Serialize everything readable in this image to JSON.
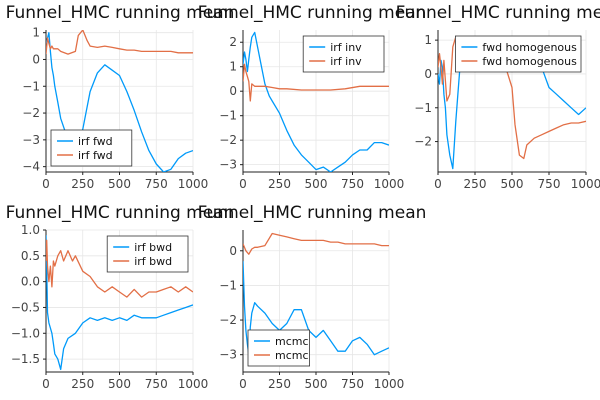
{
  "colors": {
    "series1": "#009AFA",
    "series2": "#E26F46"
  },
  "chart_data": [
    {
      "type": "line",
      "title": "Funnel_HMC running mean",
      "xlim": [
        0,
        1000
      ],
      "ylim": [
        -4.2,
        1.1
      ],
      "xticks": [
        0,
        250,
        500,
        750,
        1000
      ],
      "yticks": [
        1,
        0,
        -1,
        -2,
        -3,
        -4
      ],
      "legend": "bottom-left",
      "grid": true,
      "series": [
        {
          "name": "irf fwd",
          "color": "series1",
          "x": [
            0,
            10,
            20,
            30,
            40,
            50,
            60,
            80,
            100,
            150,
            200,
            250,
            300,
            350,
            400,
            450,
            500,
            550,
            600,
            650,
            700,
            750,
            800,
            850,
            900,
            950,
            1000
          ],
          "y": [
            0.6,
            0.8,
            1.0,
            0.3,
            -0.3,
            -0.6,
            -1.0,
            -1.6,
            -2.2,
            -3.0,
            -3.4,
            -2.6,
            -1.2,
            -0.5,
            -0.2,
            -0.4,
            -0.6,
            -1.2,
            -1.9,
            -2.7,
            -3.4,
            -3.9,
            -4.2,
            -4.1,
            -3.7,
            -3.5,
            -3.4
          ]
        },
        {
          "name": "irf fwd",
          "color": "series2",
          "x": [
            0,
            10,
            20,
            30,
            40,
            50,
            80,
            100,
            150,
            200,
            220,
            250,
            280,
            300,
            350,
            400,
            450,
            500,
            550,
            600,
            650,
            700,
            750,
            800,
            850,
            900,
            950,
            1000
          ],
          "y": [
            0.2,
            0.8,
            0.6,
            0.4,
            0.5,
            0.4,
            0.4,
            0.3,
            0.2,
            0.3,
            0.9,
            1.1,
            0.7,
            0.5,
            0.45,
            0.5,
            0.45,
            0.4,
            0.35,
            0.35,
            0.3,
            0.3,
            0.3,
            0.3,
            0.3,
            0.25,
            0.25,
            0.25
          ]
        }
      ]
    },
    {
      "type": "line",
      "title": "Funnel_HMC running mean",
      "xlim": [
        0,
        1000
      ],
      "ylim": [
        -3.3,
        2.5
      ],
      "xticks": [
        0,
        250,
        500,
        750,
        1000
      ],
      "yticks": [
        2,
        1,
        0,
        -1,
        -2,
        -3
      ],
      "legend": "top-right",
      "grid": true,
      "series": [
        {
          "name": "irf inv",
          "color": "series1",
          "x": [
            0,
            10,
            20,
            30,
            40,
            50,
            60,
            80,
            100,
            120,
            150,
            180,
            200,
            250,
            300,
            350,
            400,
            450,
            500,
            550,
            600,
            650,
            700,
            750,
            800,
            850,
            900,
            950,
            1000
          ],
          "y": [
            1.1,
            1.6,
            1.3,
            0.8,
            1.3,
            1.8,
            2.2,
            2.4,
            1.8,
            1.2,
            0.3,
            -0.2,
            -0.4,
            -0.9,
            -1.6,
            -2.2,
            -2.6,
            -2.9,
            -3.2,
            -3.1,
            -3.3,
            -3.1,
            -2.9,
            -2.6,
            -2.4,
            -2.4,
            -2.1,
            -2.1,
            -2.2
          ]
        },
        {
          "name": "irf inv",
          "color": "series2",
          "x": [
            0,
            10,
            20,
            30,
            40,
            50,
            60,
            80,
            100,
            150,
            200,
            250,
            300,
            400,
            500,
            600,
            700,
            800,
            900,
            1000
          ],
          "y": [
            0.4,
            1.1,
            0.8,
            0.6,
            0.4,
            -0.4,
            0.3,
            0.2,
            0.2,
            0.2,
            0.15,
            0.1,
            0.1,
            0.05,
            0.05,
            0.05,
            0.1,
            0.2,
            0.2,
            0.2
          ]
        }
      ]
    },
    {
      "type": "line",
      "title": "Funnel_HMC running mean",
      "xlim": [
        0,
        1000
      ],
      "ylim": [
        -2.9,
        1.3
      ],
      "xticks": [
        0,
        250,
        500,
        750,
        1000
      ],
      "yticks": [
        1,
        0,
        -1,
        -2
      ],
      "legend": "top-right",
      "grid": true,
      "series": [
        {
          "name": "fwd homogenous",
          "color": "series1",
          "x": [
            0,
            10,
            20,
            30,
            40,
            50,
            60,
            80,
            100,
            120,
            150,
            180,
            200,
            250,
            300,
            350,
            400,
            450,
            500,
            550,
            580,
            600,
            650,
            700,
            750,
            800,
            850,
            900,
            950,
            1000
          ],
          "y": [
            0.0,
            -0.3,
            0.4,
            0.2,
            -0.6,
            -1.0,
            -1.8,
            -2.4,
            -2.8,
            -1.4,
            0.3,
            0.2,
            0.1,
            0.3,
            0.6,
            0.7,
            0.3,
            0.6,
            0.9,
            1.0,
            1.1,
            0.7,
            0.4,
            0.2,
            -0.4,
            -0.6,
            -0.8,
            -1.0,
            -1.2,
            -1.0
          ]
        },
        {
          "name": "fwd homogenous",
          "color": "series2",
          "x": [
            0,
            10,
            20,
            30,
            40,
            60,
            80,
            100,
            120,
            150,
            200,
            250,
            300,
            350,
            400,
            450,
            500,
            520,
            550,
            580,
            600,
            650,
            700,
            750,
            800,
            850,
            900,
            950,
            1000
          ],
          "y": [
            0.2,
            0.6,
            0.2,
            -0.3,
            0.4,
            -0.8,
            -0.6,
            0.8,
            1.1,
            0.8,
            0.4,
            0.3,
            0.3,
            0.35,
            0.4,
            0.3,
            -0.4,
            -1.5,
            -2.4,
            -2.5,
            -2.1,
            -1.9,
            -1.8,
            -1.7,
            -1.6,
            -1.5,
            -1.45,
            -1.45,
            -1.4
          ]
        }
      ]
    },
    {
      "type": "line",
      "title": "Funnel_HMC running mean",
      "xlim": [
        0,
        1000
      ],
      "ylim": [
        -1.75,
        1.0
      ],
      "xticks": [
        0,
        250,
        500,
        750,
        1000
      ],
      "yticks": [
        1.0,
        0.5,
        0.0,
        -0.5,
        -1.0,
        -1.5
      ],
      "legend": "top-right",
      "grid": true,
      "series": [
        {
          "name": "irf bwd",
          "color": "series1",
          "x": [
            0,
            5,
            10,
            20,
            30,
            40,
            50,
            60,
            80,
            100,
            120,
            150,
            200,
            250,
            300,
            350,
            400,
            450,
            500,
            550,
            600,
            650,
            700,
            750,
            800,
            850,
            900,
            950,
            1000
          ],
          "y": [
            0.9,
            0.3,
            -0.6,
            -0.8,
            -0.9,
            -1.0,
            -1.2,
            -1.4,
            -1.5,
            -1.7,
            -1.3,
            -1.1,
            -1.0,
            -0.8,
            -0.7,
            -0.75,
            -0.7,
            -0.75,
            -0.7,
            -0.75,
            -0.65,
            -0.7,
            -0.7,
            -0.7,
            -0.65,
            -0.6,
            -0.55,
            -0.5,
            -0.45
          ]
        },
        {
          "name": "irf bwd",
          "color": "series2",
          "x": [
            0,
            5,
            10,
            20,
            30,
            40,
            50,
            60,
            80,
            100,
            120,
            150,
            180,
            200,
            250,
            300,
            350,
            400,
            450,
            500,
            550,
            600,
            650,
            700,
            750,
            800,
            850,
            900,
            950,
            1000
          ],
          "y": [
            0.4,
            0.8,
            0.3,
            0.0,
            0.3,
            -0.1,
            0.4,
            0.3,
            0.5,
            0.6,
            0.4,
            0.6,
            0.4,
            0.5,
            0.2,
            0.1,
            -0.1,
            -0.2,
            -0.1,
            -0.2,
            -0.3,
            -0.15,
            -0.3,
            -0.2,
            -0.2,
            -0.15,
            -0.1,
            -0.2,
            -0.1,
            -0.2
          ]
        }
      ]
    },
    {
      "type": "line",
      "title": "Funnel_HMC running mean",
      "xlim": [
        0,
        1000
      ],
      "ylim": [
        -3.5,
        0.6
      ],
      "xticks": [
        0,
        250,
        500,
        750,
        1000
      ],
      "yticks": [
        0,
        -1,
        -2,
        -3
      ],
      "legend": "bottom-left",
      "grid": true,
      "series": [
        {
          "name": "mcmc",
          "color": "series1",
          "x": [
            0,
            10,
            20,
            30,
            40,
            50,
            60,
            80,
            100,
            150,
            200,
            250,
            300,
            350,
            400,
            450,
            500,
            550,
            600,
            650,
            700,
            750,
            800,
            850,
            900,
            950,
            1000
          ],
          "y": [
            -0.3,
            -1.6,
            -2.3,
            -2.7,
            -3.0,
            -2.2,
            -1.8,
            -1.5,
            -1.6,
            -1.8,
            -2.1,
            -2.3,
            -2.1,
            -1.7,
            -1.7,
            -2.3,
            -2.5,
            -2.3,
            -2.6,
            -2.9,
            -2.9,
            -2.6,
            -2.5,
            -2.7,
            -3.0,
            -2.9,
            -2.8
          ]
        },
        {
          "name": "mcmc",
          "color": "series2",
          "x": [
            0,
            20,
            40,
            60,
            80,
            100,
            150,
            200,
            250,
            300,
            350,
            400,
            450,
            500,
            550,
            600,
            650,
            700,
            750,
            800,
            850,
            900,
            950,
            1000
          ],
          "y": [
            0.2,
            0.0,
            -0.1,
            0.05,
            0.1,
            0.1,
            0.15,
            0.5,
            0.45,
            0.4,
            0.35,
            0.3,
            0.3,
            0.3,
            0.3,
            0.25,
            0.25,
            0.2,
            0.2,
            0.2,
            0.2,
            0.2,
            0.15,
            0.15
          ]
        }
      ]
    }
  ]
}
